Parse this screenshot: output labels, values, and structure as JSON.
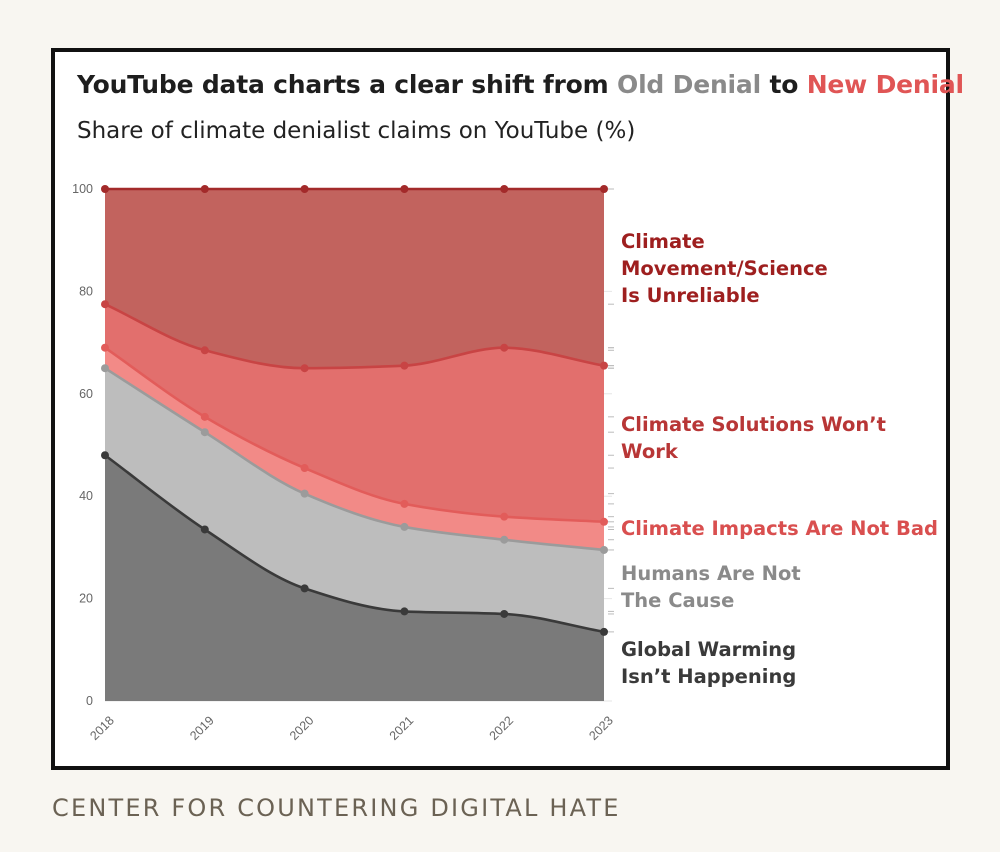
{
  "title": {
    "prefix": "YouTube data charts a clear shift from ",
    "old": "Old Denial",
    "middle": " to ",
    "new": "New Denial"
  },
  "subtitle": "Share of climate denialist claims on YouTube (%)",
  "footer": "CENTER FOR COUNTERING DIGITAL HATE",
  "chart_data": {
    "type": "area",
    "stacked": true,
    "title": "YouTube data charts a clear shift from Old Denial to New Denial",
    "subtitle": "Share of climate denialist claims on YouTube (%)",
    "xlabel": "",
    "ylabel": "",
    "x": [
      "2018",
      "2019",
      "2020",
      "2021",
      "2022",
      "2023"
    ],
    "ylim": [
      0,
      100
    ],
    "yticks": [
      "0",
      "20",
      "40",
      "60",
      "80",
      "100"
    ],
    "cumulative": true,
    "series": [
      {
        "name": "Global Warming Isn't Happening",
        "label_lines": [
          "Global Warming",
          "Isn’t Happening"
        ],
        "values": [
          48,
          33.5,
          22,
          17.5,
          17,
          13.5
        ],
        "fill": "#7a7a7a",
        "line": "#3a3a3a"
      },
      {
        "name": "Humans Are Not The Cause",
        "label_lines": [
          "Humans Are Not",
          "The Cause"
        ],
        "values": [
          65,
          52.5,
          40.5,
          34,
          31.5,
          29.5
        ],
        "fill": "#bdbdbd",
        "line": "#9b9b9b",
        "text": "#8a8a8a"
      },
      {
        "name": "Climate Impacts Are Not Bad",
        "label_lines": [
          "Climate Impacts Are Not Bad"
        ],
        "values": [
          69,
          55.5,
          45.5,
          38.5,
          36,
          35
        ],
        "fill": "#f28a87",
        "line": "#e25c5a",
        "text": "#d94f4f"
      },
      {
        "name": "Climate Solutions Won't Work",
        "label_lines": [
          "Climate Solutions Won’t",
          "Work"
        ],
        "values": [
          77.5,
          68.5,
          65,
          65.5,
          69,
          65.5
        ],
        "fill": "#e26f6d",
        "line": "#c84444",
        "text": "#b83636"
      },
      {
        "name": "Climate Movement/Science Is Unreliable",
        "label_lines": [
          "Climate",
          "Movement/Science",
          "Is Unreliable"
        ],
        "values": [
          100,
          100,
          100,
          100,
          100,
          100
        ],
        "fill": "#c2635e",
        "line": "#a32a2a",
        "text": "#9e1f1f"
      }
    ]
  }
}
